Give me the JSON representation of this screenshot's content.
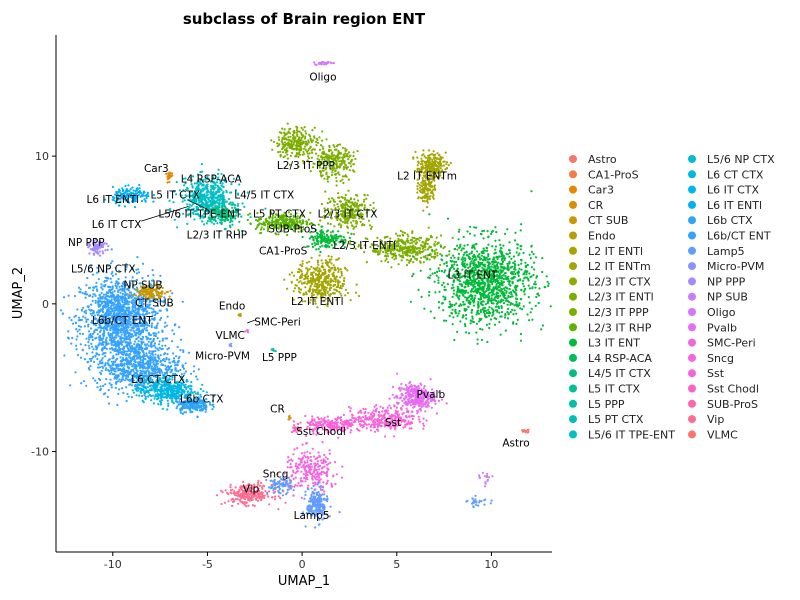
{
  "chart_data": {
    "type": "scatter",
    "title": "subclass of Brain region ENT",
    "xlabel": "UMAP_1",
    "ylabel": "UMAP_2",
    "xlim": [
      -13,
      13.2
    ],
    "ylim": [
      -16.8,
      18.2
    ],
    "xticks": [
      -10,
      -5,
      0,
      5,
      10
    ],
    "yticks": [
      -10,
      0,
      10
    ],
    "grid": false,
    "legend_position": "right",
    "categories": [
      {
        "name": "Astro",
        "color": "#F8766D"
      },
      {
        "name": "CA1-ProS",
        "color": "#EF7F48"
      },
      {
        "name": "Car3",
        "color": "#E58700"
      },
      {
        "name": "CR",
        "color": "#D89000"
      },
      {
        "name": "CT SUB",
        "color": "#C99800"
      },
      {
        "name": "Endo",
        "color": "#B79F00"
      },
      {
        "name": "L2 IT ENTl",
        "color": "#A3A500"
      },
      {
        "name": "L2 IT ENTm",
        "color": "#A3A500"
      },
      {
        "name": "L2/3 IT CTX",
        "color": "#8CAB00"
      },
      {
        "name": "L2/3 IT ENTl",
        "color": "#7CAE00"
      },
      {
        "name": "L2/3 IT PPP",
        "color": "#7CAE00"
      },
      {
        "name": "L2/3 IT RHP",
        "color": "#5BB300"
      },
      {
        "name": "L3 IT ENT",
        "color": "#00BA38"
      },
      {
        "name": "L4 RSP-ACA",
        "color": "#00BC59"
      },
      {
        "name": "L4/5 IT CTX",
        "color": "#00BF7D"
      },
      {
        "name": "L5 IT CTX",
        "color": "#00C094"
      },
      {
        "name": "L5 PPP",
        "color": "#00C0AA"
      },
      {
        "name": "L5 PT CTX",
        "color": "#00BFB9"
      },
      {
        "name": "L5/6 IT TPE-ENT",
        "color": "#00BFC4"
      },
      {
        "name": "L5/6 NP CTX",
        "color": "#00BCD3"
      },
      {
        "name": "L6 CT CTX",
        "color": "#00B8E2"
      },
      {
        "name": "L6 IT CTX",
        "color": "#00B4EF"
      },
      {
        "name": "L6 IT ENTl",
        "color": "#00B0F6"
      },
      {
        "name": "L6b CTX",
        "color": "#2CA5F8"
      },
      {
        "name": "L6b/CT ENT",
        "color": "#35A2FF"
      },
      {
        "name": "Lamp5",
        "color": "#619CFF"
      },
      {
        "name": "Micro-PVM",
        "color": "#8B93FF"
      },
      {
        "name": "NP PPP",
        "color": "#A58AFF"
      },
      {
        "name": "NP SUB",
        "color": "#C77CFF"
      },
      {
        "name": "Oligo",
        "color": "#D575FE"
      },
      {
        "name": "Pvalb",
        "color": "#E76BF3"
      },
      {
        "name": "SMC-Peri",
        "color": "#F067DD"
      },
      {
        "name": "Sncg",
        "color": "#F564E3"
      },
      {
        "name": "Sst",
        "color": "#FA62DB"
      },
      {
        "name": "Sst Chodl",
        "color": "#FF62BC"
      },
      {
        "name": "SUB-ProS",
        "color": "#FF65AC"
      },
      {
        "name": "Vip",
        "color": "#FF6C91"
      },
      {
        "name": "VLMC",
        "color": "#F8766D"
      }
    ],
    "clusters": [
      {
        "color": "#35A2FF",
        "cx": -9.6,
        "cy": -1.0,
        "rx": 1.9,
        "ry": 2.6,
        "n": 1400
      },
      {
        "color": "#35A2FF",
        "cx": -8.6,
        "cy": -4.2,
        "rx": 2.0,
        "ry": 1.6,
        "n": 700
      },
      {
        "color": "#00B8E2",
        "cx": -7.2,
        "cy": -5.8,
        "rx": 1.4,
        "ry": 0.8,
        "n": 400
      },
      {
        "color": "#2CA5F8",
        "cx": -5.8,
        "cy": -6.8,
        "rx": 0.8,
        "ry": 0.5,
        "n": 200
      },
      {
        "color": "#00B0F6",
        "cx": -9.0,
        "cy": 7.3,
        "rx": 0.9,
        "ry": 0.5,
        "n": 150
      },
      {
        "color": "#00BFC4",
        "cx": -5.0,
        "cy": 7.1,
        "rx": 1.3,
        "ry": 1.3,
        "n": 500
      },
      {
        "color": "#00BF7D",
        "cx": -4.2,
        "cy": 6.0,
        "rx": 0.7,
        "ry": 0.7,
        "n": 150
      },
      {
        "color": "#A58AFF",
        "cx": -10.8,
        "cy": 3.8,
        "rx": 0.4,
        "ry": 0.4,
        "n": 80
      },
      {
        "color": "#C99800",
        "cx": -8.0,
        "cy": 0.8,
        "rx": 0.8,
        "ry": 0.4,
        "n": 120
      },
      {
        "color": "#E58700",
        "cx": -7.0,
        "cy": 8.6,
        "rx": 0.15,
        "ry": 0.3,
        "n": 20
      },
      {
        "color": "#7CAE00",
        "cx": -0.3,
        "cy": 10.9,
        "rx": 1.0,
        "ry": 1.0,
        "n": 250
      },
      {
        "color": "#7CAE00",
        "cx": 1.6,
        "cy": 9.6,
        "rx": 1.0,
        "ry": 1.0,
        "n": 250
      },
      {
        "color": "#7CAE00",
        "cx": 2.5,
        "cy": 6.3,
        "rx": 1.1,
        "ry": 1.1,
        "n": 250
      },
      {
        "color": "#7CAE00",
        "cx": 5.5,
        "cy": 3.7,
        "rx": 1.8,
        "ry": 0.8,
        "n": 350
      },
      {
        "color": "#00BA38",
        "cx": 9.7,
        "cy": 1.5,
        "rx": 2.3,
        "ry": 2.6,
        "n": 1200
      },
      {
        "color": "#A3A500",
        "cx": 6.8,
        "cy": 9.4,
        "rx": 0.7,
        "ry": 0.7,
        "n": 200
      },
      {
        "color": "#A3A500",
        "cx": 6.6,
        "cy": 8.0,
        "rx": 0.4,
        "ry": 1.2,
        "n": 150
      },
      {
        "color": "#A3A500",
        "cx": 1.0,
        "cy": 1.5,
        "rx": 1.2,
        "ry": 1.3,
        "n": 400
      },
      {
        "color": "#5BB300",
        "cx": -1.0,
        "cy": 5.5,
        "rx": 1.3,
        "ry": 0.6,
        "n": 250
      },
      {
        "color": "#00BA38",
        "cx": 1.3,
        "cy": 4.4,
        "rx": 1.0,
        "ry": 0.6,
        "n": 150
      },
      {
        "color": "#D575FE",
        "cx": 1.1,
        "cy": 16.3,
        "rx": 0.4,
        "ry": 0.1,
        "n": 25
      },
      {
        "color": "#E76BF3",
        "cx": 6.0,
        "cy": -6.3,
        "rx": 0.9,
        "ry": 0.8,
        "n": 300
      },
      {
        "color": "#FA62DB",
        "cx": 4.3,
        "cy": -7.8,
        "rx": 1.6,
        "ry": 0.7,
        "n": 300
      },
      {
        "color": "#FA62DB",
        "cx": 1.5,
        "cy": -8.2,
        "rx": 1.2,
        "ry": 0.5,
        "n": 200
      },
      {
        "color": "#F564E3",
        "cx": 0.5,
        "cy": -11.3,
        "rx": 1.3,
        "ry": 1.3,
        "n": 250
      },
      {
        "color": "#FF6C91",
        "cx": -2.8,
        "cy": -12.9,
        "rx": 1.1,
        "ry": 0.6,
        "n": 250
      },
      {
        "color": "#619CFF",
        "cx": 0.8,
        "cy": -13.6,
        "rx": 0.5,
        "ry": 1.0,
        "n": 200
      },
      {
        "color": "#619CFF",
        "cx": -1.2,
        "cy": -12.3,
        "rx": 0.6,
        "ry": 0.5,
        "n": 80
      },
      {
        "color": "#619CFF",
        "cx": 9.3,
        "cy": -13.4,
        "rx": 0.5,
        "ry": 0.3,
        "n": 25
      },
      {
        "color": "#C77CFF",
        "cx": 9.7,
        "cy": -12.0,
        "rx": 0.3,
        "ry": 0.5,
        "n": 15
      },
      {
        "color": "#FF62BC",
        "cx": -0.3,
        "cy": -8.5,
        "rx": 0.2,
        "ry": 0.3,
        "n": 20
      },
      {
        "color": "#D89000",
        "cx": -0.7,
        "cy": -7.7,
        "rx": 0.1,
        "ry": 0.1,
        "n": 6
      },
      {
        "color": "#F8766D",
        "cx": 11.8,
        "cy": -8.6,
        "rx": 0.2,
        "ry": 0.1,
        "n": 15
      },
      {
        "color": "#B79F00",
        "cx": -3.3,
        "cy": -0.8,
        "rx": 0.1,
        "ry": 0.1,
        "n": 6
      },
      {
        "color": "#8B93FF",
        "cx": -3.8,
        "cy": -2.8,
        "rx": 0.1,
        "ry": 0.1,
        "n": 5
      },
      {
        "color": "#00C0AA",
        "cx": -1.5,
        "cy": -3.1,
        "rx": 0.2,
        "ry": 0.1,
        "n": 8
      },
      {
        "color": "#F067DD",
        "cx": -2.9,
        "cy": -1.8,
        "rx": 0.1,
        "ry": 0.1,
        "n": 5
      }
    ],
    "annotations": [
      {
        "text": "Oligo",
        "x": 1.1,
        "y": 15.4
      },
      {
        "text": "L2/3 IT PPP",
        "x": 0.2,
        "y": 9.4
      },
      {
        "text": "L2 IT ENTm",
        "x": 6.6,
        "y": 8.7
      },
      {
        "text": "Car3",
        "x": -7.7,
        "y": 9.2
      },
      {
        "text": "L4 RSP-ACA",
        "x": -4.8,
        "y": 8.5
      },
      {
        "text": "L6 IT ENTl",
        "x": -10.0,
        "y": 7.1
      },
      {
        "text": "L5 IT CTX",
        "x": -6.7,
        "y": 7.4
      },
      {
        "text": "L4/5 IT CTX",
        "x": -2.0,
        "y": 7.4
      },
      {
        "text": "L5/6 IT TPE-ENT",
        "x": -5.4,
        "y": 6.1
      },
      {
        "text": "L5 PT CTX",
        "x": -1.2,
        "y": 6.1
      },
      {
        "text": "L2/3 IT CTX",
        "x": 2.4,
        "y": 6.1
      },
      {
        "text": "L6 IT CTX",
        "x": -9.8,
        "y": 5.4
      },
      {
        "text": "SUB-ProS",
        "x": -0.5,
        "y": 5.1
      },
      {
        "text": "L2/3 IT RHP",
        "x": -4.5,
        "y": 4.7
      },
      {
        "text": "L2/3 IT ENTl",
        "x": 3.3,
        "y": 4.0
      },
      {
        "text": "NP PPP",
        "x": -11.4,
        "y": 4.2
      },
      {
        "text": "CA1-ProS",
        "x": -1.0,
        "y": 3.6
      },
      {
        "text": "L5/6 NP CTX",
        "x": -10.5,
        "y": 2.4
      },
      {
        "text": "L3 IT ENT",
        "x": 9.0,
        "y": 2.0
      },
      {
        "text": "NP SUB",
        "x": -8.4,
        "y": 1.3
      },
      {
        "text": "CT SUB",
        "x": -7.8,
        "y": 0.1
      },
      {
        "text": "L2 IT ENTl",
        "x": 0.8,
        "y": 0.2
      },
      {
        "text": "Endo",
        "x": -3.7,
        "y": -0.1
      },
      {
        "text": "L6b/CT ENT",
        "x": -9.5,
        "y": -1.1
      },
      {
        "text": "SMC-Peri",
        "x": -1.3,
        "y": -1.2
      },
      {
        "text": "VLMC",
        "x": -3.8,
        "y": -2.1
      },
      {
        "text": "Micro-PVM",
        "x": -4.2,
        "y": -3.5
      },
      {
        "text": "L5 PPP",
        "x": -1.2,
        "y": -3.6
      },
      {
        "text": "L6 CT CTX",
        "x": -7.6,
        "y": -5.1
      },
      {
        "text": "L6b CTX",
        "x": -5.3,
        "y": -6.4
      },
      {
        "text": "Pvalb",
        "x": 6.8,
        "y": -6.1
      },
      {
        "text": "CR",
        "x": -1.3,
        "y": -7.1
      },
      {
        "text": "Sst",
        "x": 4.8,
        "y": -8.0
      },
      {
        "text": "Sst Chodl",
        "x": 1.0,
        "y": -8.6
      },
      {
        "text": "Astro",
        "x": 11.3,
        "y": -9.4
      },
      {
        "text": "Sncg",
        "x": -1.4,
        "y": -11.5
      },
      {
        "text": "Vip",
        "x": -2.7,
        "y": -12.5
      },
      {
        "text": "Lamp5",
        "x": 0.5,
        "y": -14.3
      }
    ],
    "leader_lines": [
      {
        "x1": -5.0,
        "y1": 6.4,
        "x2": -6.0,
        "y2": 7.0
      },
      {
        "x1": -8.5,
        "y1": 5.6,
        "x2": -6.0,
        "y2": 6.6
      },
      {
        "x1": -2.9,
        "y1": -1.3,
        "x2": -2.5,
        "y2": -1.1
      }
    ]
  }
}
